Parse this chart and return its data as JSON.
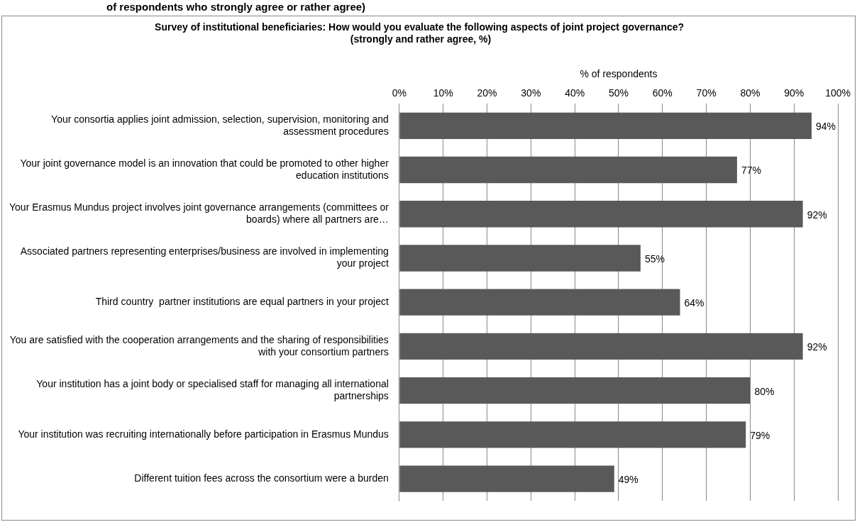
{
  "chart_data": {
    "type": "bar",
    "orientation": "horizontal",
    "title": "Survey of institutional beneficiaries: How would you evaluate the following aspects of joint project governance?  (strongly and rather agree, %)",
    "xlabel": "% of respondents",
    "annotations": [
      "of respondents who strongly agree or rather agree)"
    ],
    "categories": [
      "Your consortia applies joint admission, selection, supervision, monitoring and assessment procedures",
      "Your joint governance model is an innovation that could be promoted to other higher education institutions",
      "Your Erasmus Mundus project involves joint governance arrangements (committees or boards) where all partners are…",
      "Associated partners representing enterprises/business are involved in implementing your project",
      "Third country  partner institutions are equal partners in your project",
      "You are satisfied with the cooperation arrangements and the sharing of responsibilities with your consortium partners",
      "Your institution has a joint body or specialised staff for managing all international partnerships",
      "Your institution was recruiting internationally before participation in Erasmus Mundus",
      "Different tuition fees across the consortium were a burden"
    ],
    "values": [
      94,
      77,
      92,
      55,
      64,
      92,
      80,
      79,
      49
    ],
    "value_labels": [
      "94%",
      "77%",
      "92%",
      "55%",
      "64%",
      "92%",
      "80%",
      "79%",
      "49%"
    ],
    "color": "#595959",
    "xlim": [
      0,
      100
    ],
    "xticks": [
      {
        "value": 0,
        "label": "0%"
      },
      {
        "value": 10,
        "label": "10%"
      },
      {
        "value": 20,
        "label": "20%"
      },
      {
        "value": 30,
        "label": "30%"
      },
      {
        "value": 40,
        "label": "40%"
      },
      {
        "value": 50,
        "label": "50%"
      },
      {
        "value": 60,
        "label": "60%"
      },
      {
        "value": 70,
        "label": "70%"
      },
      {
        "value": 80,
        "label": "80%"
      },
      {
        "value": 90,
        "label": "90%"
      },
      {
        "value": 100,
        "label": "100%"
      }
    ],
    "grid": "x",
    "legend": false
  }
}
